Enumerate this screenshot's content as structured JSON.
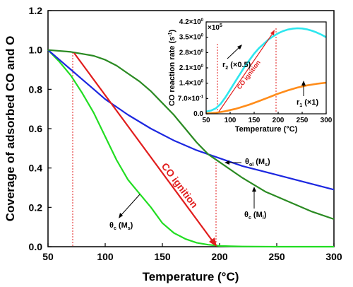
{
  "chart_data": [
    {
      "type": "line",
      "title": "",
      "xlabel": "Temperature (°C)",
      "ylabel": "Coverage of adsorbed CO and O",
      "xlim": [
        50,
        300
      ],
      "ylim": [
        0.0,
        1.2
      ],
      "x_ticks": [
        "50",
        "100",
        "150",
        "200",
        "250",
        "300"
      ],
      "y_ticks": [
        "0.0",
        "0.2",
        "0.4",
        "0.6",
        "0.8",
        "1.0",
        "1.2"
      ],
      "grid": false,
      "series": [
        {
          "name": "",
          "color": "#22dd22",
          "x": [
            50,
            60,
            70,
            80,
            90,
            100,
            110,
            120,
            130,
            140,
            150,
            160,
            170,
            180,
            190,
            200,
            210,
            220,
            250,
            300
          ],
          "y": [
            1.0,
            0.94,
            0.87,
            0.78,
            0.68,
            0.56,
            0.44,
            0.34,
            0.27,
            0.2,
            0.12,
            0.07,
            0.04,
            0.02,
            0.01,
            0.004,
            0.002,
            0.001,
            0.0,
            0.0
          ]
        },
        {
          "name": "",
          "color": "#1c27e0",
          "x": [
            50,
            60,
            70,
            80,
            90,
            100,
            110,
            120,
            140,
            160,
            180,
            200,
            220,
            240,
            260,
            280,
            300
          ],
          "y": [
            1.0,
            0.95,
            0.9,
            0.85,
            0.8,
            0.75,
            0.71,
            0.67,
            0.6,
            0.54,
            0.49,
            0.45,
            0.41,
            0.38,
            0.35,
            0.32,
            0.29
          ]
        },
        {
          "name": "",
          "color": "#2a8a22",
          "x": [
            50,
            70,
            90,
            100,
            110,
            120,
            130,
            140,
            150,
            160,
            170,
            180,
            190,
            200,
            220,
            240,
            260,
            280,
            300
          ],
          "y": [
            1.0,
            0.99,
            0.97,
            0.95,
            0.92,
            0.88,
            0.84,
            0.79,
            0.73,
            0.67,
            0.6,
            0.53,
            0.47,
            0.43,
            0.35,
            0.28,
            0.23,
            0.18,
            0.14
          ]
        }
      ],
      "annotations": {
        "theta_c_ms": {
          "main": "θ",
          "sub1": "c",
          "mid": " (M",
          "sub2": "s",
          "end": ")"
        },
        "theta_ol_ms": {
          "main": "θ",
          "sub1": "ol",
          "mid": " (M",
          "sub2": "s",
          "end": ")"
        },
        "theta_c_ml": {
          "main": "θ",
          "sub1": "c",
          "mid": " (M",
          "sub2": "l",
          "end": ")"
        },
        "ignition": "CO ignition"
      }
    },
    {
      "type": "line",
      "title": "",
      "xlabel": "Temperature (°C)",
      "ylabel": "CO reaction rate (s",
      "ylabel_sup": "-1",
      "ylabel_end": ")",
      "multiplier": "×10",
      "multiplier_exp": "5",
      "xlim": [
        50,
        300
      ],
      "ylim": [
        0,
        4.2
      ],
      "x_ticks": [
        "50",
        "100",
        "150",
        "200",
        "250",
        "300"
      ],
      "y_ticks": [
        {
          "base": "0.0",
          "exp": ""
        },
        {
          "base": "7.0×10",
          "exp": "-1"
        },
        {
          "base": "1.4×10",
          "exp": "0"
        },
        {
          "base": "2.1×10",
          "exp": "0"
        },
        {
          "base": "2.8×10",
          "exp": "0"
        },
        {
          "base": "3.5×10",
          "exp": "0"
        },
        {
          "base": "4.2×10",
          "exp": "0"
        }
      ],
      "grid": false,
      "series": [
        {
          "name": "",
          "color": "#2ee6ee",
          "x": [
            50,
            60,
            70,
            80,
            90,
            100,
            110,
            120,
            130,
            140,
            150,
            160,
            170,
            180,
            190,
            200,
            210,
            220,
            230,
            240,
            250,
            260,
            270,
            280,
            290,
            300
          ],
          "y": [
            0.1,
            0.15,
            0.25,
            0.45,
            0.75,
            1.1,
            1.45,
            1.8,
            2.15,
            2.45,
            2.75,
            3.0,
            3.2,
            3.4,
            3.55,
            3.68,
            3.78,
            3.85,
            3.89,
            3.91,
            3.9,
            3.86,
            3.8,
            3.72,
            3.62,
            3.5
          ]
        },
        {
          "name": "",
          "color": "#ff8c1a",
          "x": [
            50,
            60,
            70,
            80,
            90,
            100,
            110,
            120,
            140,
            160,
            180,
            200,
            220,
            240,
            260,
            280,
            300
          ],
          "y": [
            0.02,
            0.03,
            0.05,
            0.08,
            0.12,
            0.17,
            0.22,
            0.28,
            0.42,
            0.58,
            0.75,
            0.92,
            1.07,
            1.2,
            1.3,
            1.37,
            1.42
          ]
        }
      ],
      "annotations": {
        "r2": {
          "main": "r",
          "sub": "2",
          "rest": " (×0.5)"
        },
        "r1": {
          "main": "r",
          "sub": "1",
          "rest": " (×1)"
        },
        "ignition": "CO ignition"
      }
    }
  ]
}
